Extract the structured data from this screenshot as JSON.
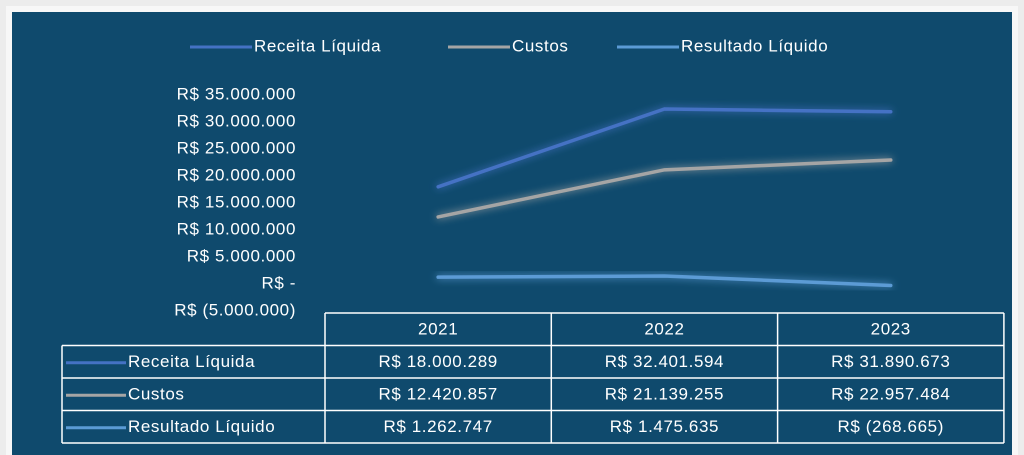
{
  "chart_data": {
    "type": "line",
    "categories": [
      "2021",
      "2022",
      "2023"
    ],
    "series": [
      {
        "name": "Receita Líquida",
        "color": "#4472c4",
        "values": [
          18000289,
          32401594,
          31890673
        ],
        "value_labels": [
          "R$ 18.000.289",
          "R$ 32.401.594",
          "R$ 31.890.673"
        ]
      },
      {
        "name": "Custos",
        "color": "#a5a5a5",
        "values": [
          12420857,
          21139255,
          22957484
        ],
        "value_labels": [
          "R$ 12.420.857",
          "R$ 21.139.255",
          "R$ 22.957.484"
        ]
      },
      {
        "name": "Resultado Líquido",
        "color": "#5b9bd5",
        "values": [
          1262747,
          1475635,
          -268665
        ],
        "value_labels": [
          "R$ 1.262.747",
          "R$ 1.475.635",
          "R$ (268.665)"
        ]
      }
    ],
    "ylim": [
      -5000000,
      35000000
    ],
    "yticks": [
      {
        "value": 35000000,
        "label": "R$ 35.000.000"
      },
      {
        "value": 30000000,
        "label": "R$ 30.000.000"
      },
      {
        "value": 25000000,
        "label": "R$ 25.000.000"
      },
      {
        "value": 20000000,
        "label": "R$ 20.000.000"
      },
      {
        "value": 15000000,
        "label": "R$ 15.000.000"
      },
      {
        "value": 10000000,
        "label": "R$ 10.000.000"
      },
      {
        "value": 5000000,
        "label": "R$ 5.000.000"
      },
      {
        "value": 0,
        "label": "R$ -"
      },
      {
        "value": -5000000,
        "label": "R$ (5.000.000)"
      }
    ],
    "legend": "top"
  }
}
